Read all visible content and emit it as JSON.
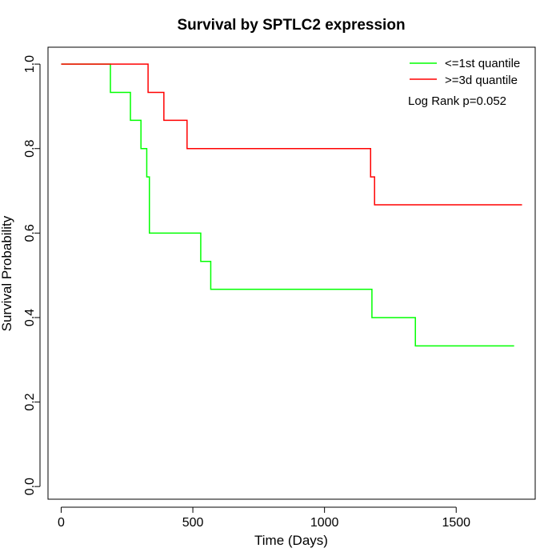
{
  "chart_data": {
    "type": "line",
    "title": "Survival by SPTLC2 expression",
    "xlabel": "Time (Days)",
    "ylabel": "Survival Probability",
    "xlim": [
      -50,
      1800
    ],
    "ylim": [
      -0.03,
      1.04
    ],
    "xticks": [
      0,
      500,
      1000,
      1500
    ],
    "yticks": [
      0.0,
      0.2,
      0.4,
      0.6,
      0.8,
      1.0
    ],
    "xtick_labels": [
      "0",
      "500",
      "1000",
      "1500"
    ],
    "ytick_labels": [
      "0.0",
      "0.2",
      "0.4",
      "0.6",
      "0.8",
      "1.0"
    ],
    "grid": false,
    "legend_position": "top-right",
    "annotation": "Log Rank p=0.052",
    "series": [
      {
        "name": "<=1st quantile",
        "color": "#00ff00",
        "step": true,
        "x": [
          0,
          187,
          263,
          303,
          325,
          335,
          530,
          568,
          1180,
          1345,
          1720
        ],
        "y": [
          1.0,
          0.933,
          0.867,
          0.8,
          0.733,
          0.6,
          0.533,
          0.467,
          0.4,
          0.333,
          0.333
        ]
      },
      {
        "name": ">=3d quantile",
        "color": "#ff0000",
        "step": true,
        "x": [
          0,
          330,
          390,
          478,
          1175,
          1190,
          1750
        ],
        "y": [
          1.0,
          0.933,
          0.867,
          0.8,
          0.733,
          0.667,
          0.667
        ]
      }
    ]
  }
}
